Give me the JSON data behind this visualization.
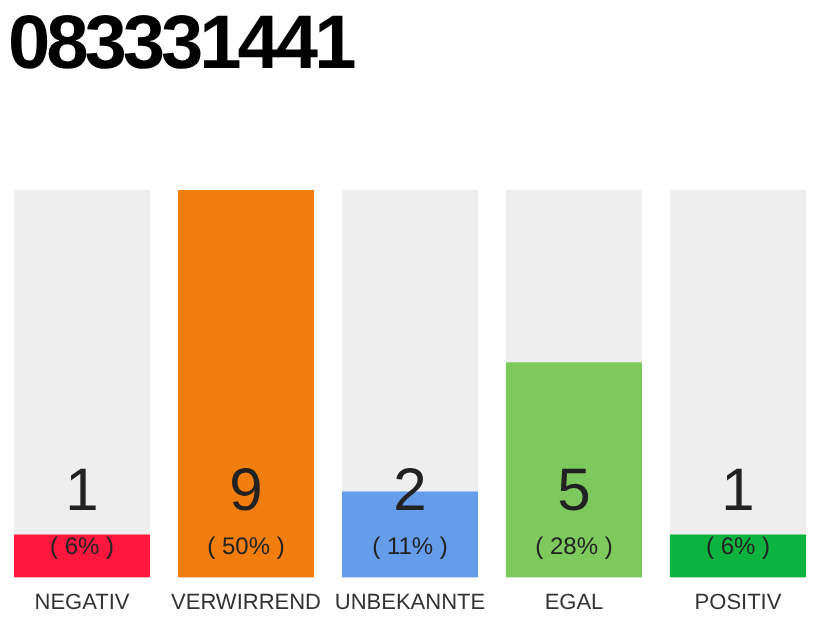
{
  "chart_data": {
    "type": "bar",
    "title": "083331441",
    "categories": [
      "NEGATIV",
      "VERWIRREND",
      "UNBEKANNTE",
      "EGAL",
      "POSITIV"
    ],
    "values": [
      1,
      9,
      2,
      5,
      1
    ],
    "colors": [
      "#ff173d",
      "#f07d0d",
      "#659deb",
      "#7dc95e",
      "#0cb43f"
    ],
    "annotations": [
      "( 6% )",
      "( 50% )",
      "( 11% )",
      "( 28% )",
      "( 6% )"
    ],
    "data_labels": true,
    "grid": false,
    "legend": false
  }
}
